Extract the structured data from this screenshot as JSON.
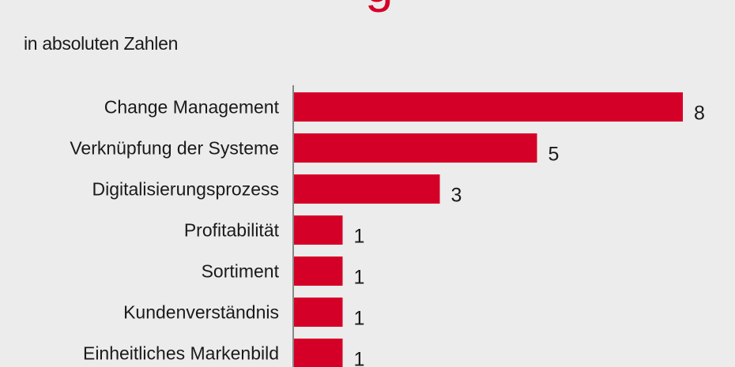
{
  "title_fragment": "g",
  "subtitle": "in absoluten Zahlen",
  "colors": {
    "bar": "#d50027",
    "background": "#ececec",
    "axis": "#666666"
  },
  "chart_data": {
    "type": "bar",
    "orientation": "horizontal",
    "title": "g",
    "subtitle": "in absoluten Zahlen",
    "categories": [
      "Change Management",
      "Verknüpfung der Systeme",
      "Digitalisierungsprozess",
      "Profitabilität",
      "Sortiment",
      "Kundenverständnis",
      "Einheitliches Markenbild"
    ],
    "values": [
      8,
      5,
      3,
      1,
      1,
      1,
      1
    ],
    "xlim": [
      0,
      8
    ],
    "grid": false,
    "legend": "none"
  }
}
